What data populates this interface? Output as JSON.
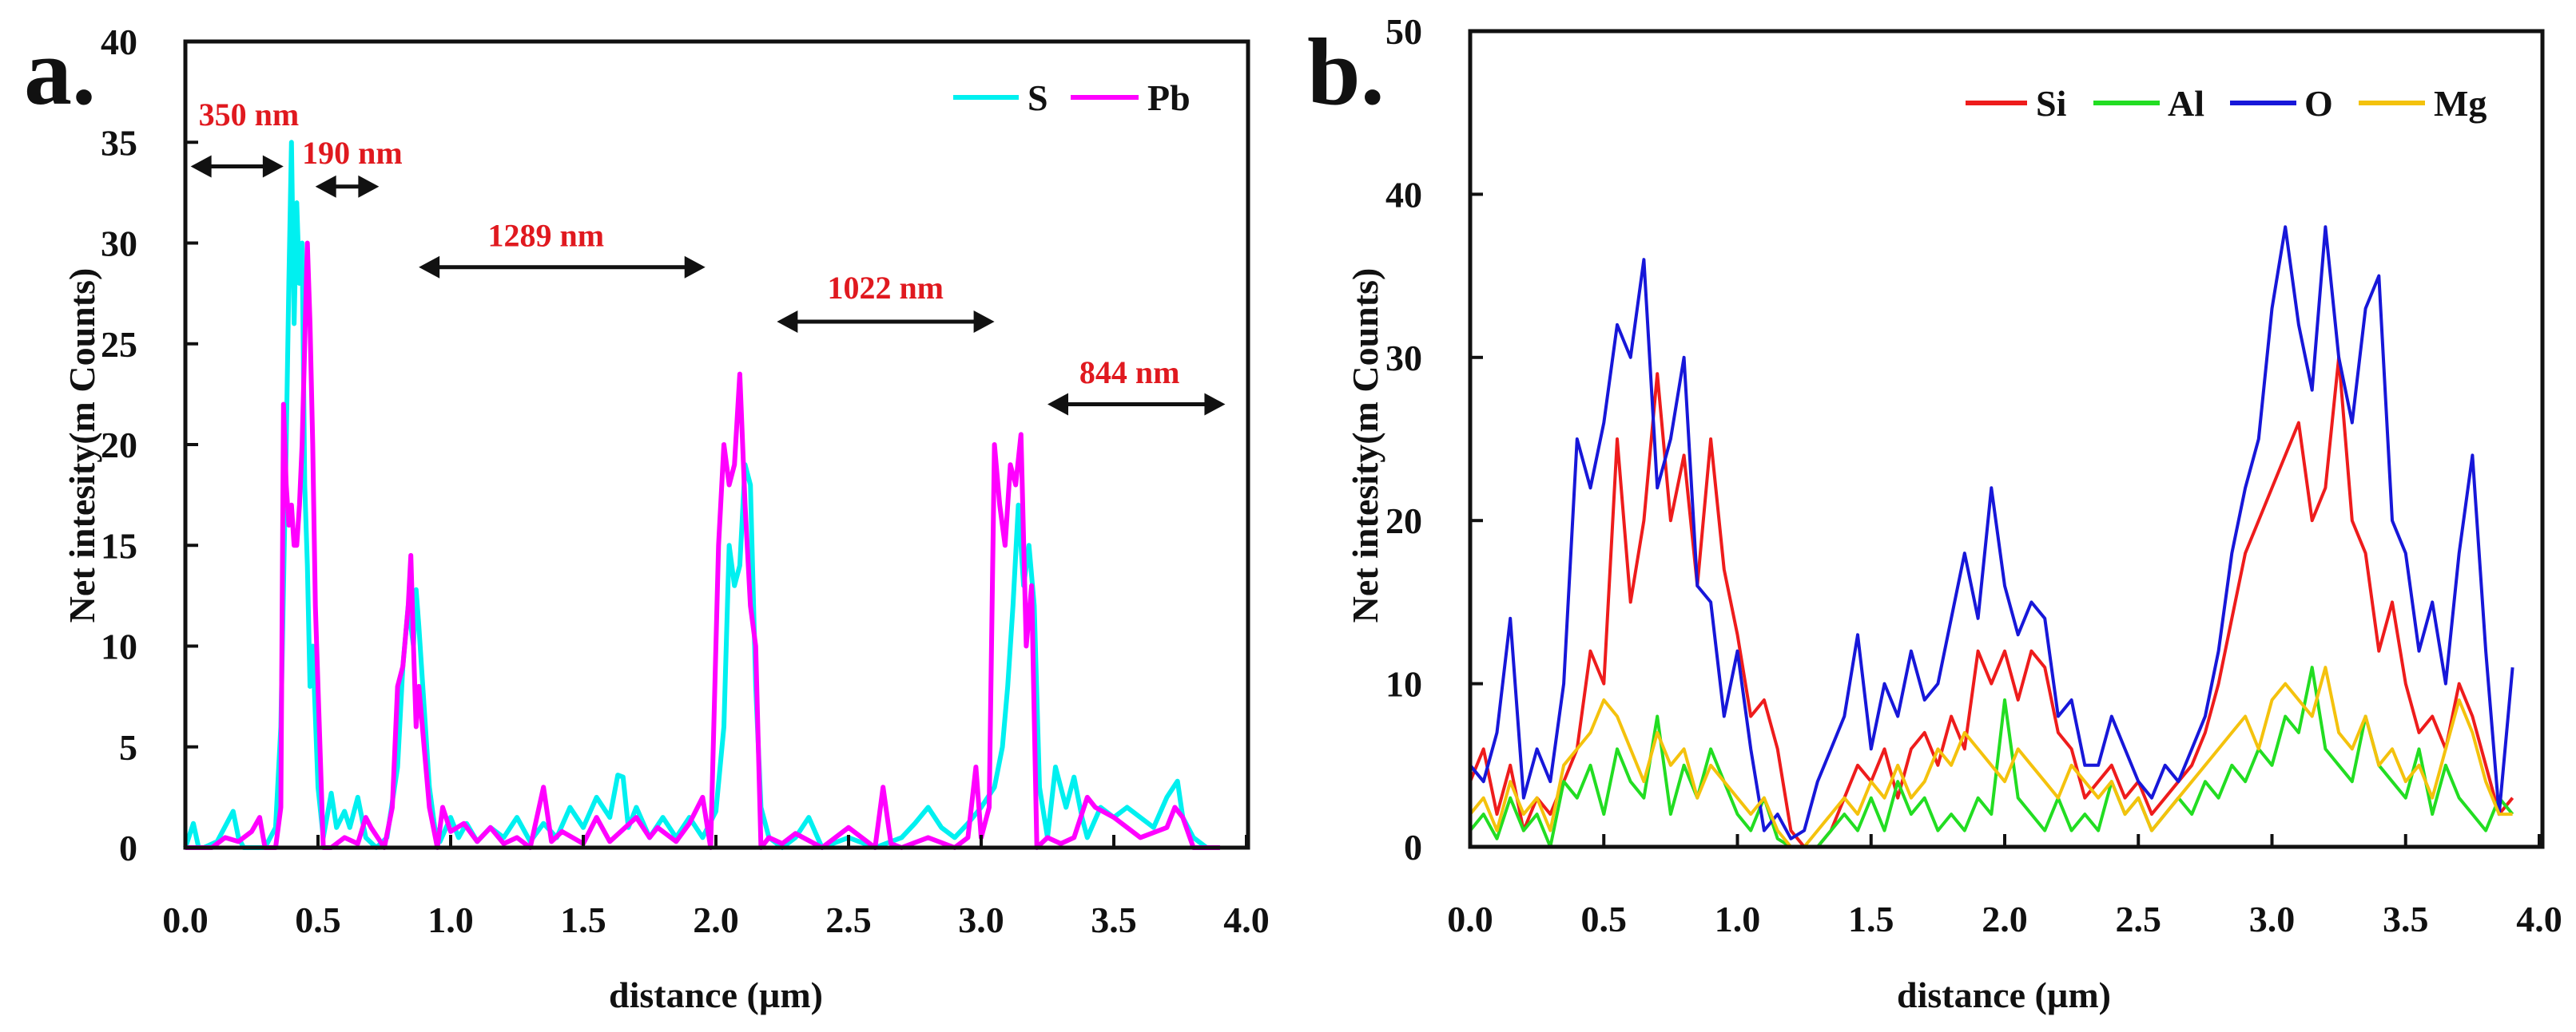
{
  "chart_data": [
    {
      "panel_label": "a.",
      "type": "line",
      "title": "",
      "xlabel": "distance (µm)",
      "ylabel": "Net intesity(m Counts)",
      "xlim": [
        0,
        4
      ],
      "ylim": [
        0,
        40
      ],
      "xticks": [
        "0.0",
        "0.5",
        "1.0",
        "1.5",
        "2.0",
        "2.5",
        "3.0",
        "3.5",
        "4.0"
      ],
      "yticks": [
        "0",
        "5",
        "10",
        "15",
        "20",
        "25",
        "30",
        "35",
        "40"
      ],
      "grid": false,
      "legend_placement": "top-right",
      "series": [
        {
          "name": "S",
          "color": "#00f0f0",
          "x": [
            0.0,
            0.03,
            0.05,
            0.07,
            0.12,
            0.18,
            0.2,
            0.22,
            0.3,
            0.34,
            0.36,
            0.38,
            0.39,
            0.4,
            0.41,
            0.42,
            0.43,
            0.44,
            0.45,
            0.46,
            0.47,
            0.48,
            0.5,
            0.52,
            0.55,
            0.57,
            0.6,
            0.62,
            0.65,
            0.68,
            0.72,
            0.76,
            0.8,
            0.82,
            0.84,
            0.86,
            0.87,
            0.88,
            0.9,
            0.92,
            0.94,
            0.96,
            1.0,
            1.03,
            1.06,
            1.1,
            1.15,
            1.2,
            1.25,
            1.3,
            1.35,
            1.4,
            1.45,
            1.5,
            1.55,
            1.6,
            1.63,
            1.65,
            1.67,
            1.7,
            1.75,
            1.8,
            1.85,
            1.9,
            1.95,
            2.0,
            2.03,
            2.05,
            2.07,
            2.09,
            2.11,
            2.13,
            2.15,
            2.17,
            2.2,
            2.25,
            2.3,
            2.35,
            2.4,
            2.5,
            2.6,
            2.7,
            2.75,
            2.8,
            2.85,
            2.9,
            2.95,
            3.0,
            3.05,
            3.08,
            3.1,
            3.12,
            3.14,
            3.16,
            3.18,
            3.2,
            3.22,
            3.25,
            3.28,
            3.3,
            3.32,
            3.35,
            3.38,
            3.4,
            3.45,
            3.5,
            3.55,
            3.6,
            3.65,
            3.7,
            3.74,
            3.76,
            3.8,
            3.85,
            3.9
          ],
          "y": [
            0,
            1.2,
            0,
            0,
            0.3,
            1.8,
            0.5,
            0,
            0,
            1,
            6,
            20,
            28,
            35,
            26,
            32,
            28,
            30,
            18,
            14,
            8,
            10,
            3,
            0.5,
            2.7,
            1,
            1.8,
            1,
            2.5,
            0.5,
            0,
            0.5,
            4,
            9,
            12,
            10,
            12.8,
            11,
            7,
            3,
            1,
            0.3,
            1.5,
            0.5,
            1.2,
            0.3,
            1,
            0.5,
            1.5,
            0.3,
            1.2,
            0.5,
            2,
            1,
            2.5,
            1.5,
            3.6,
            3.5,
            1,
            2,
            0.5,
            1.5,
            0.5,
            1.5,
            0.5,
            1.8,
            6,
            15,
            13,
            14,
            19,
            18,
            8,
            2,
            0.5,
            0,
            0.5,
            1.5,
            0,
            0.5,
            0,
            0.5,
            1.2,
            2,
            1,
            0.5,
            1.2,
            2,
            3,
            5,
            8,
            12,
            17,
            13,
            15,
            12,
            3,
            0.5,
            4,
            3,
            2,
            3.5,
            1.5,
            0.5,
            2,
            1.5,
            2,
            1.5,
            1,
            2.5,
            3.3,
            1.5,
            0.5,
            0,
            0
          ]
        },
        {
          "name": "Pb",
          "color": "#ff00ff",
          "x": [
            0.0,
            0.1,
            0.15,
            0.2,
            0.25,
            0.28,
            0.3,
            0.34,
            0.36,
            0.37,
            0.38,
            0.39,
            0.4,
            0.41,
            0.42,
            0.43,
            0.44,
            0.45,
            0.46,
            0.47,
            0.48,
            0.49,
            0.5,
            0.52,
            0.55,
            0.6,
            0.65,
            0.68,
            0.7,
            0.75,
            0.78,
            0.8,
            0.82,
            0.84,
            0.85,
            0.86,
            0.87,
            0.88,
            0.9,
            0.92,
            0.95,
            0.97,
            1.0,
            1.05,
            1.1,
            1.15,
            1.2,
            1.25,
            1.3,
            1.35,
            1.38,
            1.42,
            1.5,
            1.55,
            1.6,
            1.7,
            1.75,
            1.78,
            1.85,
            1.9,
            1.95,
            1.98,
            2.01,
            2.03,
            2.05,
            2.07,
            2.09,
            2.11,
            2.13,
            2.15,
            2.17,
            2.2,
            2.25,
            2.3,
            2.4,
            2.5,
            2.6,
            2.63,
            2.66,
            2.7,
            2.8,
            2.9,
            2.95,
            2.98,
            3.0,
            3.03,
            3.05,
            3.07,
            3.09,
            3.11,
            3.13,
            3.15,
            3.17,
            3.19,
            3.21,
            3.25,
            3.3,
            3.35,
            3.4,
            3.43,
            3.5,
            3.6,
            3.7,
            3.73,
            3.76,
            3.8,
            3.9
          ],
          "y": [
            0,
            0,
            0.5,
            0.3,
            0.8,
            1.5,
            0,
            0,
            2,
            22,
            18,
            16,
            17,
            15,
            15,
            17,
            20,
            25,
            30,
            26,
            20,
            12,
            8,
            0,
            0,
            0.5,
            0.2,
            1.5,
            1,
            0,
            2,
            8,
            9,
            12,
            14.5,
            10,
            6,
            8,
            5,
            2,
            0,
            2,
            0.8,
            1.2,
            0.3,
            1,
            0.2,
            0.5,
            0,
            3,
            0.3,
            0.8,
            0.2,
            1.5,
            0.3,
            1.5,
            0.5,
            1,
            0.3,
            1.2,
            2.5,
            0,
            15,
            20,
            18,
            19,
            23.5,
            17,
            12,
            10,
            0,
            0.5,
            0.2,
            0.7,
            0,
            1,
            0,
            3,
            0.2,
            0,
            0.5,
            0,
            0.5,
            4,
            0.5,
            2,
            20,
            17,
            15,
            19,
            18,
            20.5,
            10,
            13,
            0,
            0.5,
            0.2,
            0.5,
            2.5,
            2,
            1.5,
            0.5,
            1,
            2,
            1.5,
            0,
            0
          ]
        }
      ],
      "annotations": [
        {
          "text": "350 nm",
          "x_from": 0.02,
          "x_to": 0.37,
          "y": 33.8,
          "label_x": 0.05,
          "label_y": 36.4
        },
        {
          "text": "190 nm",
          "x_from": 0.49,
          "x_to": 0.73,
          "y": 32.8,
          "label_x": 0.44,
          "label_y": 34.5
        },
        {
          "text": "1289 nm",
          "x_from": 0.88,
          "x_to": 1.96,
          "y": 28.8,
          "label_x": 1.14,
          "label_y": 30.4
        },
        {
          "text": "1022 nm",
          "x_from": 2.23,
          "x_to": 3.05,
          "y": 26.1,
          "label_x": 2.42,
          "label_y": 27.8
        },
        {
          "text": "844 nm",
          "x_from": 3.25,
          "x_to": 3.92,
          "y": 22.0,
          "label_x": 3.37,
          "label_y": 23.6
        }
      ]
    },
    {
      "panel_label": "b.",
      "type": "line",
      "title": "",
      "xlabel": "distance (µm)",
      "ylabel": "Net intesity(m Counts)",
      "xlim": [
        0,
        4
      ],
      "ylim": [
        0,
        50
      ],
      "xticks": [
        "0.0",
        "0.5",
        "1.0",
        "1.5",
        "2.0",
        "2.5",
        "3.0",
        "3.5",
        "4.0"
      ],
      "yticks": [
        "0",
        "10",
        "20",
        "30",
        "40",
        "50"
      ],
      "grid": false,
      "legend_placement": "top-right",
      "x_step": 0.05,
      "series": [
        {
          "name": "Si",
          "color": "#ee1c1c",
          "y": [
            4,
            6,
            2,
            5,
            1,
            3,
            2,
            4,
            6,
            12,
            10,
            25,
            15,
            20,
            29,
            20,
            24,
            16,
            25,
            17,
            13,
            8,
            9,
            6,
            1,
            0,
            0,
            1,
            3,
            5,
            4,
            6,
            3,
            6,
            7,
            5,
            8,
            6,
            12,
            10,
            12,
            9,
            12,
            11,
            7,
            6,
            3,
            4,
            5,
            3,
            4,
            2,
            3,
            4,
            5,
            7,
            10,
            14,
            18,
            20,
            22,
            24,
            26,
            20,
            22,
            30,
            20,
            18,
            12,
            15,
            10,
            7,
            8,
            6,
            10,
            8,
            5,
            2,
            3
          ]
        },
        {
          "name": "Al",
          "color": "#22dd22",
          "y": [
            1,
            2,
            0.5,
            3,
            1,
            2,
            0,
            4,
            3,
            5,
            2,
            6,
            4,
            3,
            8,
            2,
            5,
            3,
            6,
            4,
            2,
            1,
            3,
            0.5,
            0,
            0,
            0,
            1,
            2,
            1,
            3,
            1,
            4,
            2,
            3,
            1,
            2,
            1,
            3,
            2,
            9,
            3,
            2,
            1,
            3,
            1,
            2,
            1,
            4,
            2,
            3,
            1,
            2,
            3,
            2,
            4,
            3,
            5,
            4,
            6,
            5,
            8,
            7,
            11,
            6,
            5,
            4,
            8,
            5,
            4,
            3,
            6,
            2,
            5,
            3,
            2,
            1,
            3,
            2
          ]
        },
        {
          "name": "O",
          "color": "#1717d9",
          "y": [
            5,
            4,
            7,
            14,
            3,
            6,
            4,
            10,
            25,
            22,
            26,
            32,
            30,
            36,
            22,
            25,
            30,
            16,
            15,
            8,
            12,
            6,
            1,
            2,
            0.5,
            1,
            4,
            6,
            8,
            13,
            6,
            10,
            8,
            12,
            9,
            10,
            14,
            18,
            14,
            22,
            16,
            13,
            15,
            14,
            8,
            9,
            5,
            5,
            8,
            6,
            4,
            3,
            5,
            4,
            6,
            8,
            12,
            18,
            22,
            25,
            33,
            38,
            32,
            28,
            38,
            30,
            26,
            33,
            35,
            20,
            18,
            12,
            15,
            10,
            18,
            24,
            12,
            2,
            11
          ]
        },
        {
          "name": "Mg",
          "color": "#f4c20d",
          "y": [
            2,
            3,
            1,
            4,
            2,
            3,
            1,
            5,
            6,
            7,
            9,
            8,
            6,
            4,
            7,
            5,
            6,
            3,
            5,
            4,
            3,
            2,
            3,
            1,
            0,
            0,
            1,
            2,
            3,
            2,
            4,
            3,
            5,
            3,
            4,
            6,
            5,
            7,
            6,
            5,
            4,
            6,
            5,
            4,
            3,
            5,
            4,
            3,
            4,
            2,
            3,
            1,
            2,
            3,
            4,
            5,
            6,
            7,
            8,
            6,
            9,
            10,
            9,
            8,
            11,
            7,
            6,
            8,
            5,
            6,
            4,
            5,
            3,
            6,
            9,
            7,
            4,
            2,
            2
          ]
        }
      ]
    }
  ]
}
